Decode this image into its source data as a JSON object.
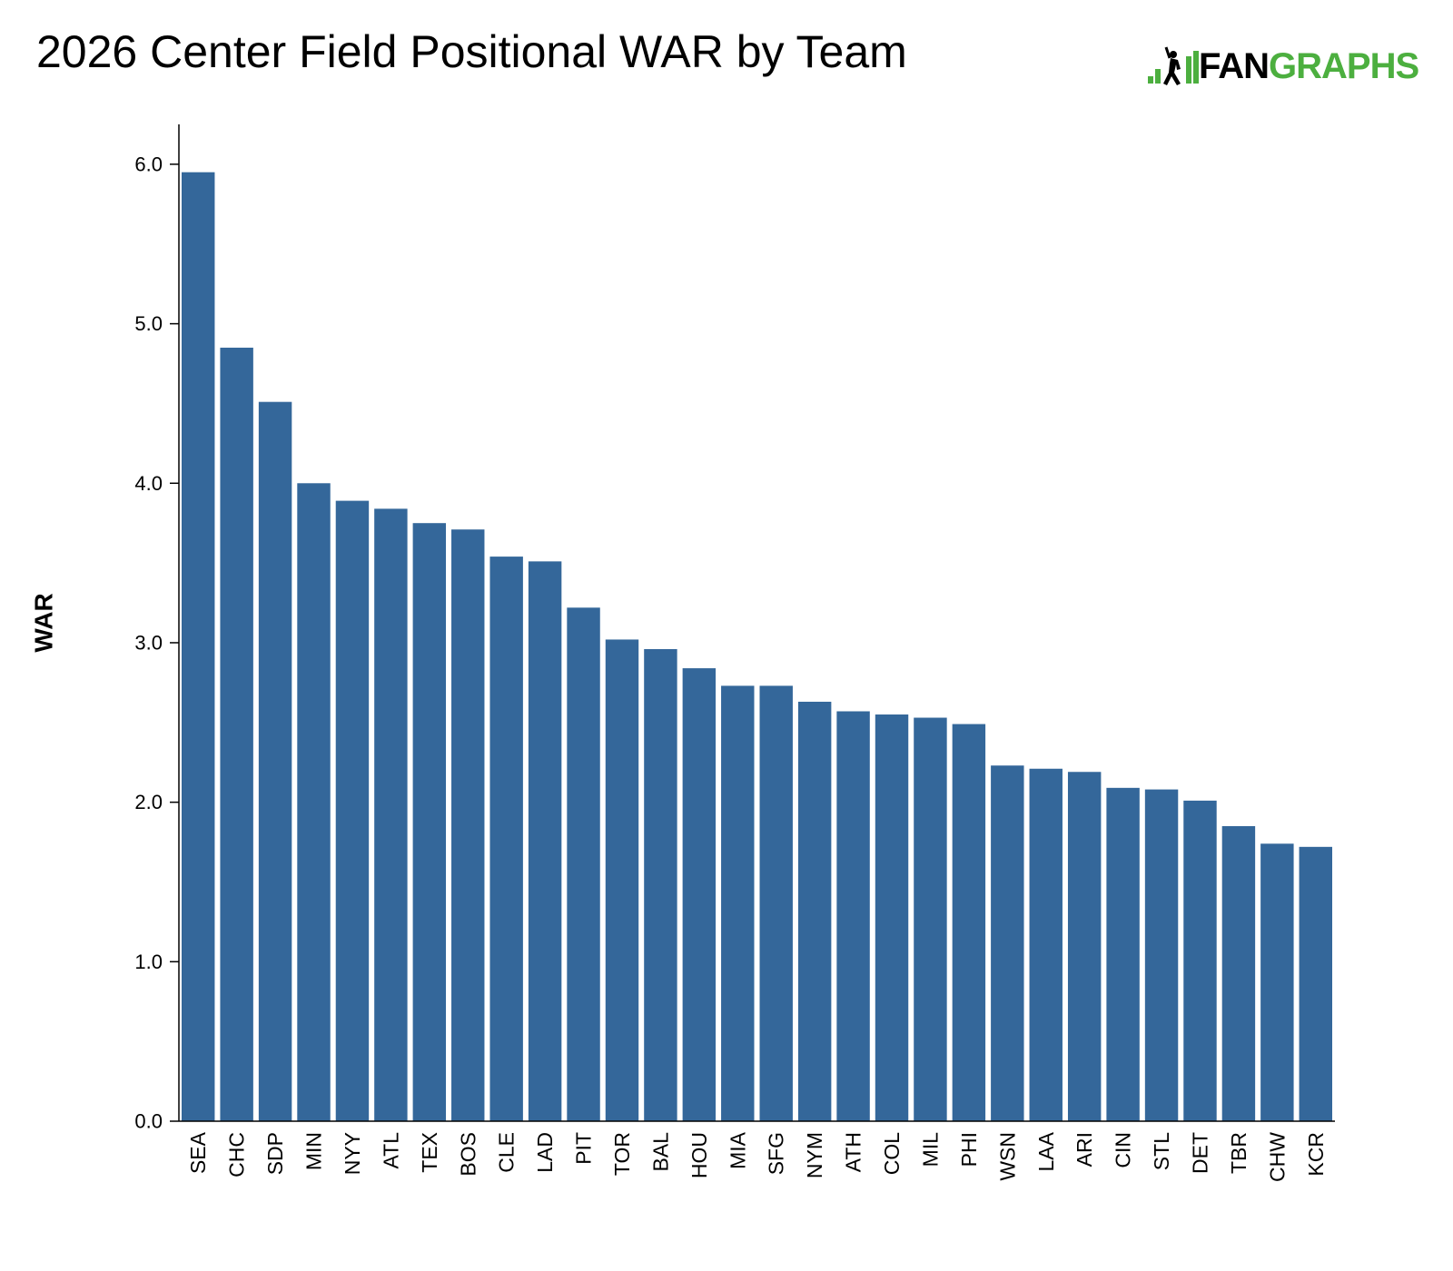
{
  "chart_data": {
    "type": "bar",
    "title": "2026 Center Field Positional WAR by Team",
    "xlabel": "",
    "ylabel": "WAR",
    "ylim": [
      0,
      6.25
    ],
    "yticks": [
      "0.0",
      "1.0",
      "2.0",
      "3.0",
      "4.0",
      "5.0",
      "6.0"
    ],
    "grid": false,
    "bar_color": "#34679a",
    "categories": [
      "SEA",
      "CHC",
      "SDP",
      "MIN",
      "NYY",
      "ATL",
      "TEX",
      "BOS",
      "CLE",
      "LAD",
      "PIT",
      "TOR",
      "BAL",
      "HOU",
      "MIA",
      "SFG",
      "NYM",
      "ATH",
      "COL",
      "MIL",
      "PHI",
      "WSN",
      "LAA",
      "ARI",
      "CIN",
      "STL",
      "DET",
      "TBR",
      "CHW",
      "KCR"
    ],
    "values": [
      5.95,
      4.85,
      4.51,
      4.0,
      3.89,
      3.84,
      3.75,
      3.71,
      3.54,
      3.51,
      3.22,
      3.02,
      2.96,
      2.84,
      2.73,
      2.73,
      2.63,
      2.57,
      2.55,
      2.53,
      2.49,
      2.23,
      2.21,
      2.19,
      2.09,
      2.08,
      2.01,
      1.85,
      1.74,
      1.72
    ]
  },
  "logo": {
    "part1": "FAN",
    "part2": "GRAPHS",
    "color_dark": "#000000",
    "color_green": "#4caf3f"
  }
}
